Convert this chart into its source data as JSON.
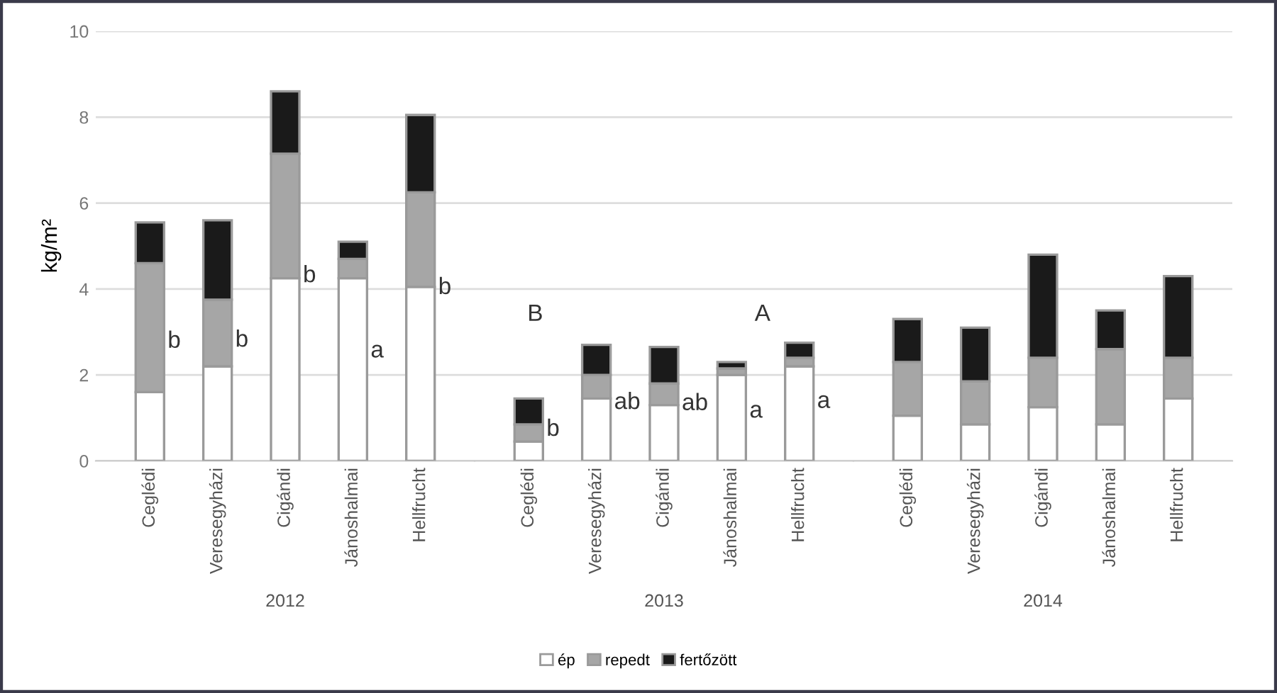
{
  "chart_data": [
    {
      "type": "bar",
      "stacked": true,
      "xlabel": "2012",
      "ylabel": "kg/m²",
      "categories": [
        "Ceglédi",
        "Veresegyházi",
        "Cigándi",
        "Jánoshalmai",
        "Hellfrucht"
      ],
      "ylim": [
        0,
        10
      ],
      "yticks": [
        0,
        2,
        4,
        6,
        8,
        10
      ],
      "grid": "y",
      "legend": false,
      "series": [
        {
          "color": "#ffffff",
          "values": [
            1.6,
            2.2,
            4.25,
            4.25,
            4.05
          ]
        },
        {
          "color": "#a6a6a6",
          "values": [
            3.0,
            1.55,
            2.9,
            0.45,
            2.2
          ]
        },
        {
          "color": "#1a1a1a",
          "values": [
            0.95,
            1.85,
            1.45,
            0.4,
            1.8
          ]
        }
      ],
      "annotations": [
        "b",
        "b",
        "b",
        "a",
        "b"
      ]
    },
    {
      "type": "bar",
      "stacked": true,
      "xlabel": "2013",
      "categories": [
        "Ceglédi",
        "Veresegyházi",
        "Cigándi",
        "Jánoshalmai",
        "Hellfrucht"
      ],
      "ylim": [
        0,
        10
      ],
      "yticks": [
        0,
        2,
        4,
        6,
        8,
        10
      ],
      "grid": "y",
      "legend": "bottom",
      "tick_labels": "x",
      "series": [
        {
          "name": "ép",
          "color": "#ffffff",
          "values": [
            0.45,
            1.45,
            1.3,
            2.0,
            2.2
          ]
        },
        {
          "name": "repedt",
          "color": "#a6a6a6",
          "values": [
            0.4,
            0.55,
            0.5,
            0.15,
            0.2
          ]
        },
        {
          "name": "fertőzött",
          "color": "#1a1a1a",
          "values": [
            0.6,
            0.7,
            0.85,
            0.15,
            0.35
          ]
        }
      ],
      "annotations": [
        "b",
        "ab",
        "ab",
        "a",
        "a",
        "B",
        "A"
      ]
    },
    {
      "type": "bar",
      "stacked": true,
      "xlabel": "2014",
      "categories": [
        "Ceglédi",
        "Veresegyházi",
        "Cigándi",
        "Jánoshalmai",
        "Hellfrucht"
      ],
      "ylim": [
        0,
        10
      ],
      "yticks": [
        0,
        2,
        4,
        6,
        8,
        10
      ],
      "grid": "y",
      "legend": false,
      "tick_labels": "x",
      "series": [
        {
          "color": "#ffffff",
          "values": [
            1.05,
            0.85,
            1.25,
            0.85,
            1.45
          ]
        },
        {
          "color": "#a6a6a6",
          "values": [
            1.25,
            1.0,
            1.15,
            1.75,
            0.95
          ]
        },
        {
          "color": "#1a1a1a",
          "values": [
            1.0,
            1.25,
            2.4,
            0.9,
            1.9
          ]
        }
      ]
    }
  ]
}
